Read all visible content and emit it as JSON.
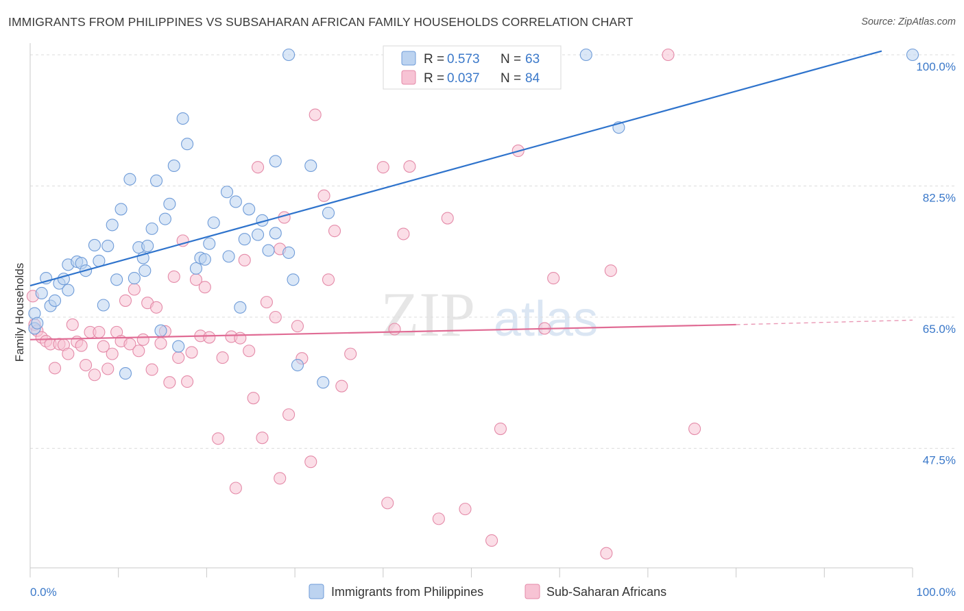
{
  "title": "IMMIGRANTS FROM PHILIPPINES VS SUBSAHARAN AFRICAN FAMILY HOUSEHOLDS CORRELATION CHART",
  "source": "Source: ZipAtlas.com",
  "watermark": {
    "zip": "ZIP",
    "atlas": "atlas"
  },
  "colors": {
    "blue_fill": "#bcd3f0",
    "blue_stroke": "#6e9bd8",
    "blue_line": "#2e73cc",
    "pink_fill": "#f7c3d4",
    "pink_stroke": "#e48aa8",
    "pink_line": "#e06b94",
    "value_text": "#3a78c9",
    "grid": "#dcdcdc",
    "axis": "#c8c8c8"
  },
  "chart_data": {
    "type": "scatter",
    "title": "IMMIGRANTS FROM PHILIPPINES VS SUBSAHARAN AFRICAN FAMILY HOUSEHOLDS CORRELATION CHART",
    "xlabel": "",
    "ylabel": "Family Households",
    "xlim": [
      0,
      100
    ],
    "ylim": [
      32,
      102
    ],
    "x_tick_labels": {
      "left": "0.0%",
      "right": "100.0%"
    },
    "y_ticks": [
      {
        "value": 100.0,
        "label": "100.0%"
      },
      {
        "value": 82.5,
        "label": "82.5%"
      },
      {
        "value": 65.0,
        "label": "65.0%"
      },
      {
        "value": 47.5,
        "label": "47.5%"
      }
    ],
    "grid": true,
    "legend_position": "top-center",
    "bottom_legend": [
      "Immigrants from Philippines",
      "Sub-Saharan Africans"
    ],
    "stats": [
      {
        "r_label": "R = ",
        "r_value": "0.573",
        "n_label": "N = ",
        "n_value": "63"
      },
      {
        "r_label": "R = ",
        "r_value": "0.037",
        "n_label": "N = ",
        "n_value": "84"
      }
    ],
    "series": [
      {
        "name": "Immigrants from Philippines",
        "color": "#6e9bd8",
        "trend": {
          "x": [
            0,
            96.5
          ],
          "y": [
            69.2,
            100.5
          ]
        },
        "points": [
          [
            0.5,
            63.5
          ],
          [
            0.5,
            65.5
          ],
          [
            0.8,
            64.2
          ],
          [
            1.3,
            68.2
          ],
          [
            1.8,
            70.2
          ],
          [
            2.3,
            66.5
          ],
          [
            2.8,
            67.2
          ],
          [
            3.3,
            69.5
          ],
          [
            3.8,
            70.1
          ],
          [
            4.3,
            68.6
          ],
          [
            4.3,
            72.0
          ],
          [
            5.3,
            72.4
          ],
          [
            5.8,
            72.2
          ],
          [
            6.3,
            71.2
          ],
          [
            7.3,
            74.6
          ],
          [
            7.8,
            72.5
          ],
          [
            8.3,
            66.6
          ],
          [
            8.8,
            74.5
          ],
          [
            9.3,
            77.3
          ],
          [
            9.8,
            70.0
          ],
          [
            10.3,
            79.4
          ],
          [
            10.8,
            57.5
          ],
          [
            11.3,
            83.4
          ],
          [
            11.8,
            70.2
          ],
          [
            12.3,
            74.3
          ],
          [
            12.8,
            72.9
          ],
          [
            13.0,
            71.2
          ],
          [
            13.3,
            74.5
          ],
          [
            13.8,
            76.8
          ],
          [
            14.3,
            83.2
          ],
          [
            14.8,
            63.2
          ],
          [
            15.3,
            78.1
          ],
          [
            15.8,
            80.1
          ],
          [
            16.3,
            85.2
          ],
          [
            16.8,
            61.1
          ],
          [
            17.3,
            91.5
          ],
          [
            17.8,
            88.1
          ],
          [
            18.8,
            71.5
          ],
          [
            19.3,
            72.9
          ],
          [
            19.8,
            72.7
          ],
          [
            20.3,
            74.8
          ],
          [
            20.8,
            77.6
          ],
          [
            22.3,
            81.7
          ],
          [
            22.5,
            73.1
          ],
          [
            23.3,
            80.4
          ],
          [
            23.8,
            66.3
          ],
          [
            24.3,
            75.4
          ],
          [
            24.8,
            79.4
          ],
          [
            25.8,
            76.0
          ],
          [
            26.3,
            77.9
          ],
          [
            27.0,
            73.9
          ],
          [
            27.8,
            85.8
          ],
          [
            27.8,
            76.2
          ],
          [
            29.3,
            73.6
          ],
          [
            29.8,
            70.0
          ],
          [
            29.3,
            100.0
          ],
          [
            30.3,
            58.6
          ],
          [
            31.8,
            85.2
          ],
          [
            33.2,
            56.3
          ],
          [
            33.8,
            78.9
          ],
          [
            63.0,
            100.0
          ],
          [
            66.7,
            90.3
          ],
          [
            100.0,
            100.0
          ]
        ]
      },
      {
        "name": "Sub-Saharan Africans",
        "color": "#e48aa8",
        "trend": {
          "x": [
            0,
            80
          ],
          "y": [
            62.0,
            64.0
          ]
        },
        "trend_dash": {
          "x": [
            80,
            100
          ],
          "y": [
            64.0,
            64.6
          ]
        },
        "points": [
          [
            0.3,
            67.8
          ],
          [
            0.5,
            64.0
          ],
          [
            0.8,
            63.2
          ],
          [
            1.3,
            62.3
          ],
          [
            1.8,
            61.8
          ],
          [
            2.3,
            61.4
          ],
          [
            2.8,
            58.2
          ],
          [
            3.3,
            61.4
          ],
          [
            3.8,
            61.3
          ],
          [
            4.3,
            60.1
          ],
          [
            4.8,
            64.0
          ],
          [
            5.3,
            61.7
          ],
          [
            5.8,
            61.2
          ],
          [
            6.8,
            63.0
          ],
          [
            6.3,
            58.6
          ],
          [
            7.3,
            57.3
          ],
          [
            7.8,
            63.0
          ],
          [
            8.3,
            61.1
          ],
          [
            8.8,
            58.1
          ],
          [
            9.3,
            60.1
          ],
          [
            9.8,
            63.0
          ],
          [
            10.3,
            61.8
          ],
          [
            10.8,
            67.2
          ],
          [
            11.3,
            61.4
          ],
          [
            11.8,
            68.7
          ],
          [
            12.3,
            60.5
          ],
          [
            12.8,
            62.0
          ],
          [
            13.3,
            66.9
          ],
          [
            13.8,
            58.0
          ],
          [
            14.3,
            66.3
          ],
          [
            14.8,
            61.5
          ],
          [
            15.3,
            63.1
          ],
          [
            15.8,
            56.3
          ],
          [
            16.3,
            70.4
          ],
          [
            16.8,
            59.6
          ],
          [
            17.3,
            75.2
          ],
          [
            17.8,
            56.4
          ],
          [
            18.3,
            60.3
          ],
          [
            18.8,
            70.0
          ],
          [
            19.3,
            62.5
          ],
          [
            19.8,
            69.0
          ],
          [
            20.3,
            62.3
          ],
          [
            21.3,
            48.8
          ],
          [
            21.8,
            59.6
          ],
          [
            22.8,
            62.4
          ],
          [
            23.3,
            42.2
          ],
          [
            23.8,
            62.2
          ],
          [
            24.3,
            72.6
          ],
          [
            24.8,
            60.5
          ],
          [
            25.3,
            54.2
          ],
          [
            25.8,
            85.0
          ],
          [
            26.3,
            48.9
          ],
          [
            26.8,
            67.0
          ],
          [
            27.8,
            65.0
          ],
          [
            28.3,
            43.5
          ],
          [
            28.3,
            74.1
          ],
          [
            28.8,
            78.3
          ],
          [
            29.3,
            52.0
          ],
          [
            30.3,
            63.8
          ],
          [
            30.8,
            59.5
          ],
          [
            31.8,
            45.7
          ],
          [
            32.3,
            92.0
          ],
          [
            33.3,
            81.2
          ],
          [
            33.8,
            70.0
          ],
          [
            34.5,
            76.5
          ],
          [
            35.3,
            55.8
          ],
          [
            36.3,
            60.1
          ],
          [
            40.0,
            85.0
          ],
          [
            40.5,
            40.2
          ],
          [
            41.3,
            63.4
          ],
          [
            42.3,
            76.1
          ],
          [
            43.0,
            85.1
          ],
          [
            46.3,
            38.1
          ],
          [
            47.3,
            78.2
          ],
          [
            49.3,
            39.4
          ],
          [
            52.3,
            35.2
          ],
          [
            53.3,
            50.1
          ],
          [
            55.3,
            87.2
          ],
          [
            58.3,
            63.5
          ],
          [
            59.3,
            70.2
          ],
          [
            65.3,
            33.5
          ],
          [
            65.8,
            71.2
          ],
          [
            75.3,
            50.1
          ],
          [
            72.3,
            100.0
          ]
        ]
      }
    ]
  }
}
